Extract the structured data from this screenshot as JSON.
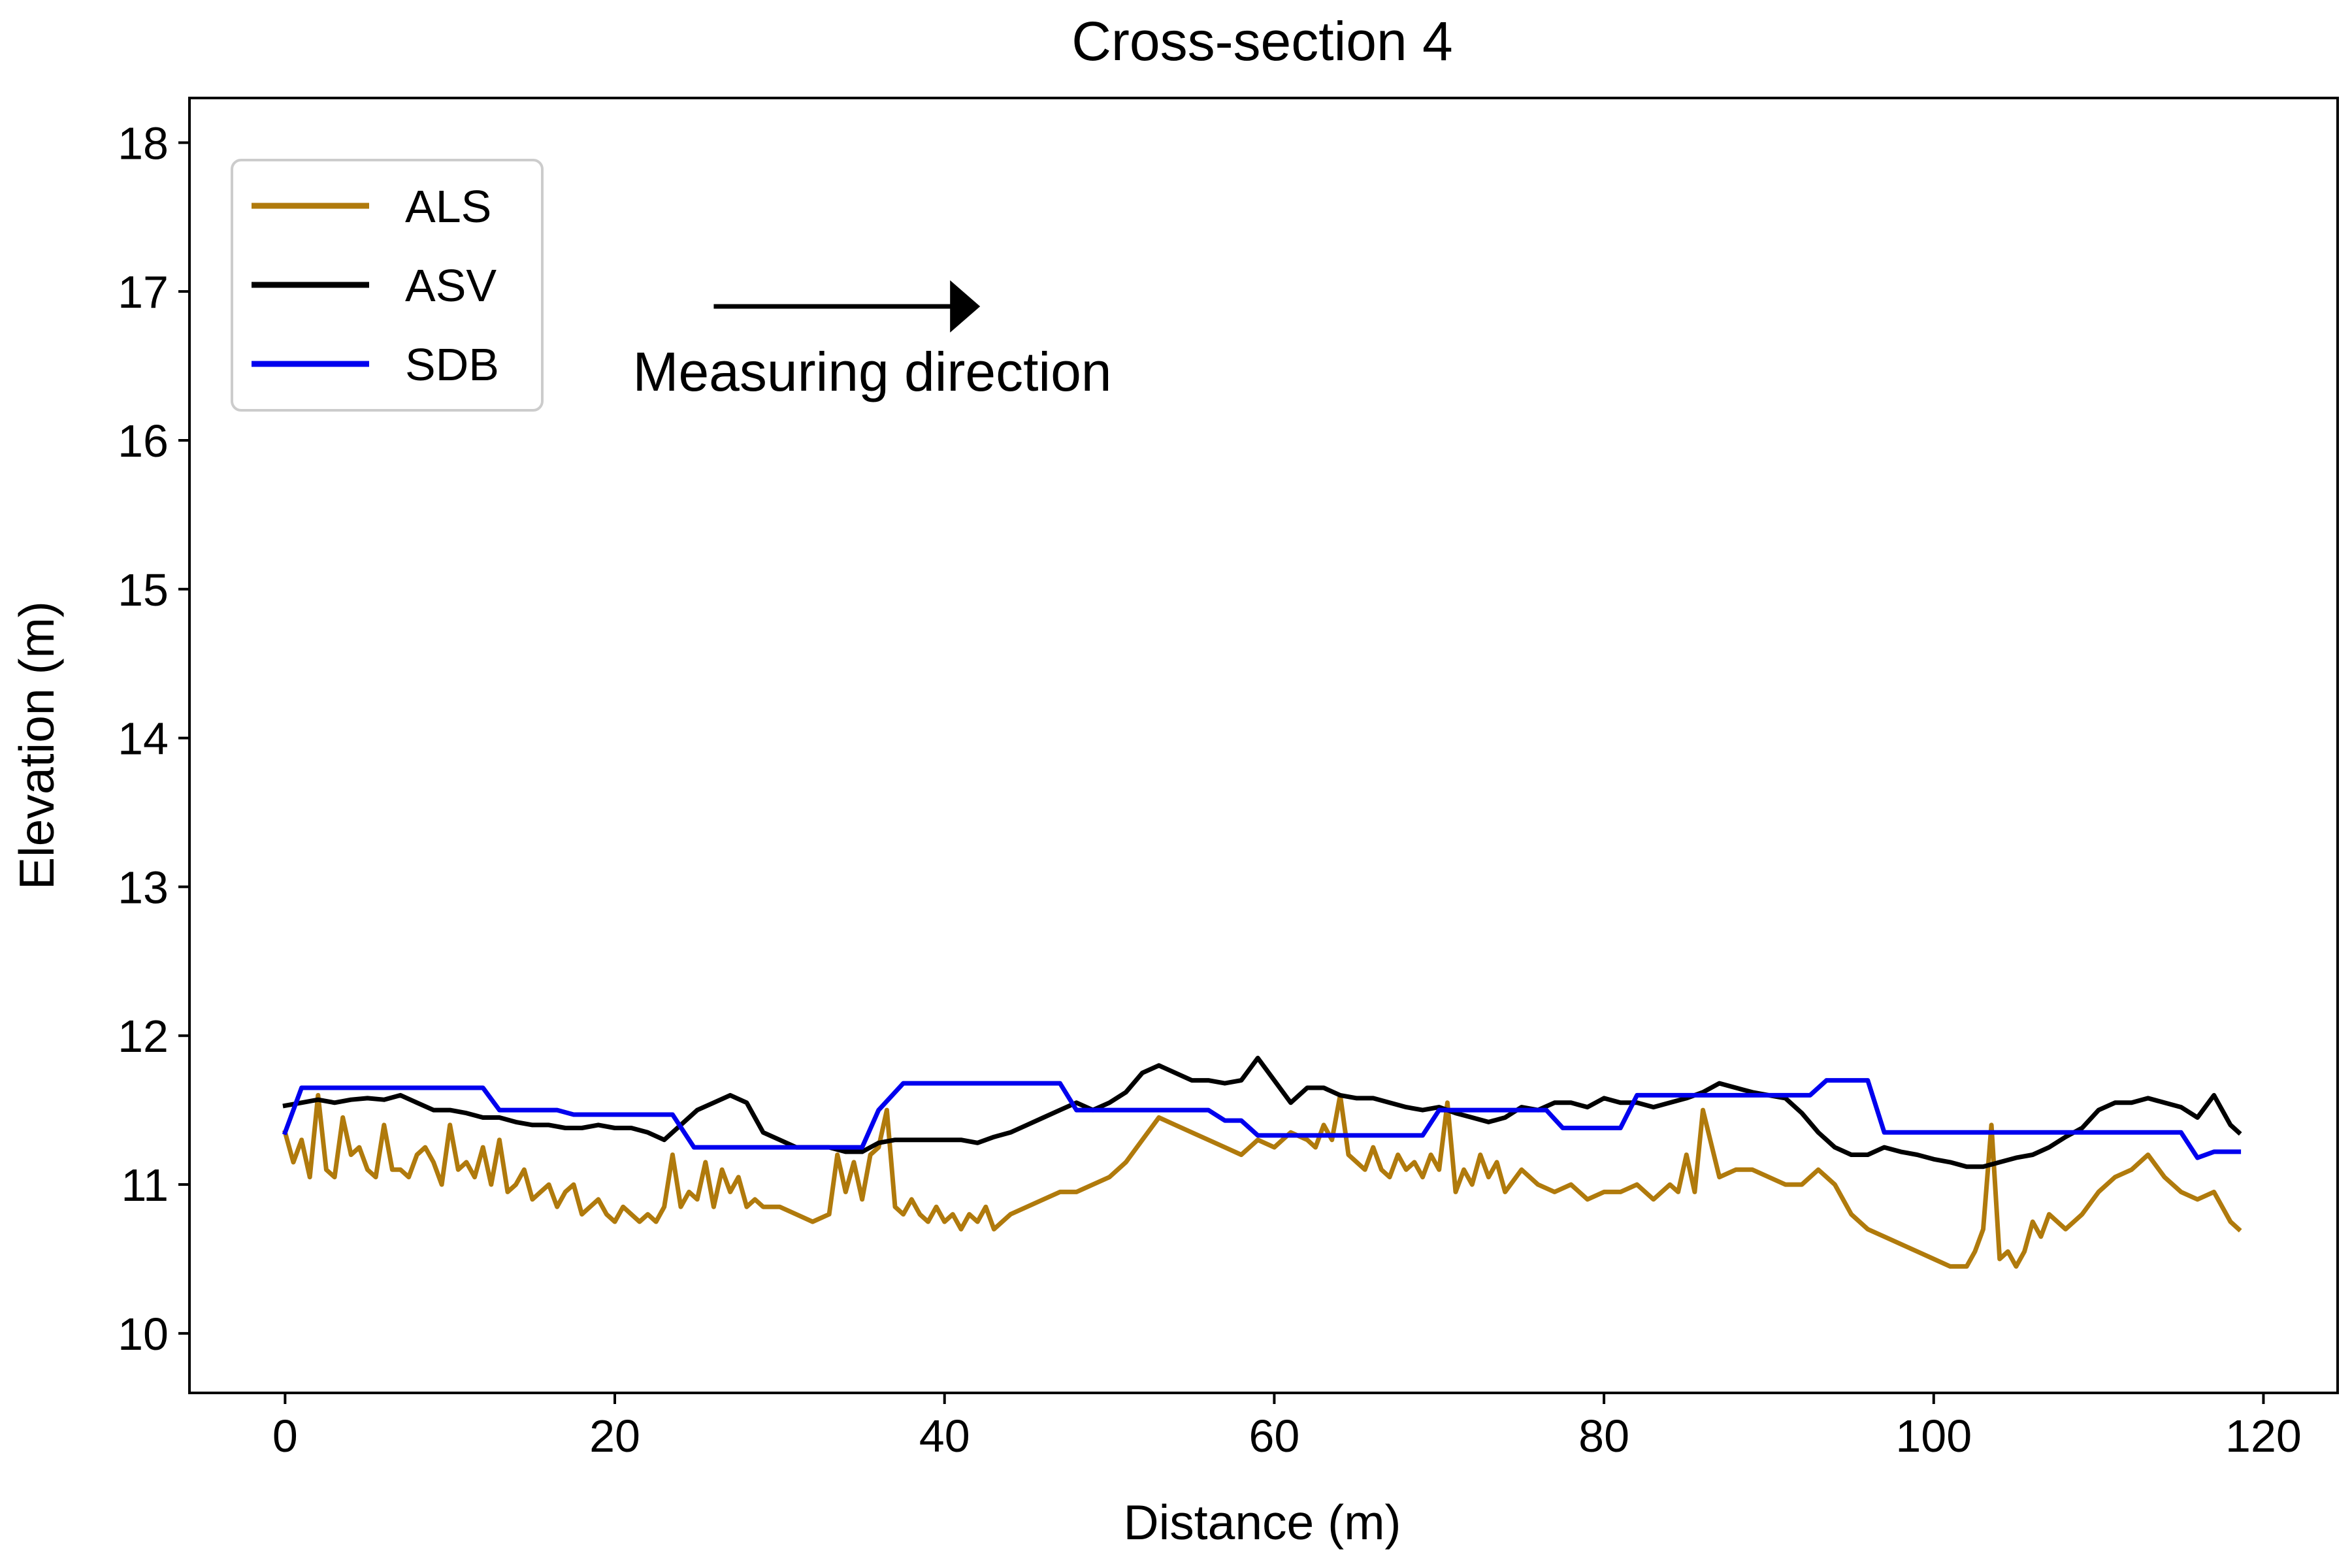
{
  "chart_data": {
    "type": "line",
    "title": "Cross-section 4",
    "xlabel": "Distance (m)",
    "ylabel": "Elevation (m)",
    "xlim": [
      -5.8,
      124.5
    ],
    "ylim": [
      9.6,
      18.3
    ],
    "xticks": [
      0,
      20,
      40,
      60,
      80,
      100,
      120
    ],
    "xtick_labels": [
      "0",
      "20",
      "40",
      "60",
      "80",
      "100",
      "120"
    ],
    "yticks": [
      10,
      11,
      12,
      13,
      14,
      15,
      16,
      17,
      18
    ],
    "ytick_labels": [
      "10",
      "11",
      "12",
      "13",
      "14",
      "15",
      "16",
      "17",
      "18"
    ],
    "grid": false,
    "legend_position": "top-left",
    "annotation": {
      "text": "Measuring direction",
      "arrow_from": [
        26,
        16.9
      ],
      "arrow_to": [
        42,
        16.9
      ]
    },
    "series": [
      {
        "name": "ALS",
        "color": "#b07a0c",
        "x": [
          0,
          0.5,
          1,
          1.5,
          2,
          2.5,
          3,
          3.5,
          4,
          4.5,
          5,
          5.5,
          6,
          6.5,
          7,
          7.5,
          8,
          8.5,
          9,
          9.5,
          10,
          10.5,
          11,
          11.5,
          12,
          12.5,
          13,
          13.5,
          14,
          14.5,
          15,
          15.5,
          16,
          16.5,
          17,
          17.5,
          18,
          18.5,
          19,
          19.5,
          20,
          20.5,
          21,
          21.5,
          22,
          22.5,
          23,
          23.5,
          24,
          24.5,
          25,
          25.5,
          26,
          26.5,
          27,
          27.5,
          28,
          28.5,
          29,
          30,
          31,
          32,
          33,
          33.5,
          34,
          34.5,
          35,
          35.5,
          36,
          36.5,
          37,
          37.5,
          38,
          38.5,
          39,
          39.5,
          40,
          40.5,
          41,
          41.5,
          42,
          42.5,
          43,
          43.5,
          44,
          45,
          46,
          47,
          48,
          49,
          50,
          51,
          52,
          53,
          54,
          55,
          56,
          57,
          58,
          59,
          60,
          61,
          62,
          62.5,
          63,
          63.5,
          64,
          64.5,
          65,
          65.5,
          66,
          66.5,
          67,
          67.5,
          68,
          68.5,
          69,
          69.5,
          70,
          70.5,
          71,
          71.5,
          72,
          72.5,
          73,
          73.5,
          74,
          75,
          76,
          77,
          78,
          79,
          80,
          81,
          82,
          83,
          84,
          84.5,
          85,
          85.5,
          86,
          87,
          88,
          89,
          90,
          91,
          92,
          93,
          94,
          95,
          96,
          97,
          98,
          99,
          100,
          101,
          102,
          102.5,
          103,
          103.5,
          104,
          104.5,
          105,
          105.5,
          106,
          106.5,
          107,
          107.5,
          108,
          109,
          110,
          111,
          112,
          113,
          114,
          115,
          116,
          117,
          118,
          118.5
        ],
        "values": [
          11.35,
          11.15,
          11.3,
          11.05,
          11.6,
          11.1,
          11.05,
          11.45,
          11.2,
          11.25,
          11.1,
          11.05,
          11.4,
          11.1,
          11.1,
          11.05,
          11.2,
          11.25,
          11.15,
          11.0,
          11.4,
          11.1,
          11.15,
          11.05,
          11.25,
          11.0,
          11.3,
          10.95,
          11.0,
          11.1,
          10.9,
          10.95,
          11.0,
          10.85,
          10.95,
          11.0,
          10.8,
          10.85,
          10.9,
          10.8,
          10.75,
          10.85,
          10.8,
          10.75,
          10.8,
          10.75,
          10.85,
          11.2,
          10.85,
          10.95,
          10.9,
          11.15,
          10.85,
          11.1,
          10.95,
          11.05,
          10.85,
          10.9,
          10.85,
          10.85,
          10.8,
          10.75,
          10.8,
          11.2,
          10.95,
          11.15,
          10.9,
          11.2,
          11.25,
          11.5,
          10.85,
          10.8,
          10.9,
          10.8,
          10.75,
          10.85,
          10.75,
          10.8,
          10.7,
          10.8,
          10.75,
          10.85,
          10.7,
          10.75,
          10.8,
          10.85,
          10.9,
          10.95,
          10.95,
          11.0,
          11.05,
          11.15,
          11.3,
          11.45,
          11.4,
          11.35,
          11.3,
          11.25,
          11.2,
          11.3,
          11.25,
          11.35,
          11.3,
          11.25,
          11.4,
          11.3,
          11.6,
          11.2,
          11.15,
          11.1,
          11.25,
          11.1,
          11.05,
          11.2,
          11.1,
          11.15,
          11.05,
          11.2,
          11.1,
          11.55,
          10.95,
          11.1,
          11.0,
          11.2,
          11.05,
          11.15,
          10.95,
          11.1,
          11.0,
          10.95,
          11.0,
          10.9,
          10.95,
          10.95,
          11.0,
          10.9,
          11.0,
          10.95,
          11.2,
          10.95,
          11.5,
          11.05,
          11.1,
          11.1,
          11.05,
          11.0,
          11.0,
          11.1,
          11.0,
          10.8,
          10.7,
          10.65,
          10.6,
          10.55,
          10.5,
          10.45,
          10.45,
          10.55,
          10.7,
          11.4,
          10.5,
          10.55,
          10.45,
          10.55,
          10.75,
          10.65,
          10.8,
          10.75,
          10.7,
          10.8,
          10.95,
          11.05,
          11.1,
          11.2,
          11.05,
          10.95,
          10.9,
          10.95,
          10.75,
          10.7
        ]
      },
      {
        "name": "ASV",
        "color": "#000000",
        "x": [
          0,
          1,
          2,
          3,
          4,
          5,
          6,
          7,
          8,
          9,
          10,
          11,
          12,
          13,
          14,
          15,
          16,
          17,
          18,
          19,
          20,
          21,
          22,
          23,
          24,
          25,
          26,
          27,
          28,
          29,
          30,
          31,
          32,
          33,
          34,
          35,
          36,
          37,
          38,
          39,
          40,
          41,
          42,
          43,
          44,
          45,
          46,
          47,
          48,
          49,
          50,
          51,
          52,
          53,
          54,
          55,
          56,
          57,
          58,
          59,
          60,
          61,
          62,
          63,
          64,
          65,
          66,
          67,
          68,
          69,
          70,
          71,
          72,
          73,
          74,
          75,
          76,
          77,
          78,
          79,
          80,
          81,
          82,
          83,
          84,
          85,
          86,
          87,
          88,
          89,
          90,
          91,
          92,
          93,
          94,
          95,
          96,
          97,
          98,
          99,
          100,
          101,
          102,
          103,
          104,
          105,
          106,
          107,
          108,
          109,
          110,
          111,
          112,
          113,
          114,
          115,
          116,
          117,
          118,
          118.5
        ],
        "values": [
          11.53,
          11.55,
          11.57,
          11.55,
          11.57,
          11.58,
          11.57,
          11.6,
          11.55,
          11.5,
          11.5,
          11.48,
          11.45,
          11.45,
          11.42,
          11.4,
          11.4,
          11.38,
          11.38,
          11.4,
          11.38,
          11.38,
          11.35,
          11.3,
          11.4,
          11.5,
          11.55,
          11.6,
          11.55,
          11.35,
          11.3,
          11.25,
          11.25,
          11.25,
          11.22,
          11.22,
          11.28,
          11.3,
          11.3,
          11.3,
          11.3,
          11.3,
          11.28,
          11.32,
          11.35,
          11.4,
          11.45,
          11.5,
          11.55,
          11.5,
          11.55,
          11.62,
          11.75,
          11.8,
          11.75,
          11.7,
          11.7,
          11.68,
          11.7,
          11.85,
          11.7,
          11.55,
          11.65,
          11.65,
          11.6,
          11.58,
          11.58,
          11.55,
          11.52,
          11.5,
          11.52,
          11.48,
          11.45,
          11.42,
          11.45,
          11.52,
          11.5,
          11.55,
          11.55,
          11.52,
          11.58,
          11.55,
          11.55,
          11.52,
          11.55,
          11.58,
          11.62,
          11.68,
          11.65,
          11.62,
          11.6,
          11.58,
          11.48,
          11.35,
          11.25,
          11.2,
          11.2,
          11.25,
          11.22,
          11.2,
          11.17,
          11.15,
          11.12,
          11.12,
          11.15,
          11.18,
          11.2,
          11.25,
          11.32,
          11.38,
          11.5,
          11.55,
          11.55,
          11.58,
          11.55,
          11.52,
          11.45,
          11.6,
          11.4,
          11.35
        ]
      },
      {
        "name": "SDB",
        "color": "#0000ee",
        "x": [
          0,
          1,
          12,
          13,
          16.5,
          17.5,
          23.5,
          24.8,
          35,
          36,
          37.5,
          47,
          48,
          56,
          57,
          58,
          59,
          69,
          70,
          76.5,
          77.5,
          81,
          82,
          92.5,
          93.5,
          96,
          97,
          115,
          116,
          117,
          118.5
        ],
        "values": [
          11.35,
          11.65,
          11.65,
          11.5,
          11.5,
          11.47,
          11.47,
          11.25,
          11.25,
          11.5,
          11.68,
          11.68,
          11.5,
          11.5,
          11.43,
          11.43,
          11.33,
          11.33,
          11.5,
          11.5,
          11.38,
          11.38,
          11.6,
          11.6,
          11.7,
          11.7,
          11.35,
          11.35,
          11.18,
          11.22,
          11.22
        ]
      }
    ]
  }
}
